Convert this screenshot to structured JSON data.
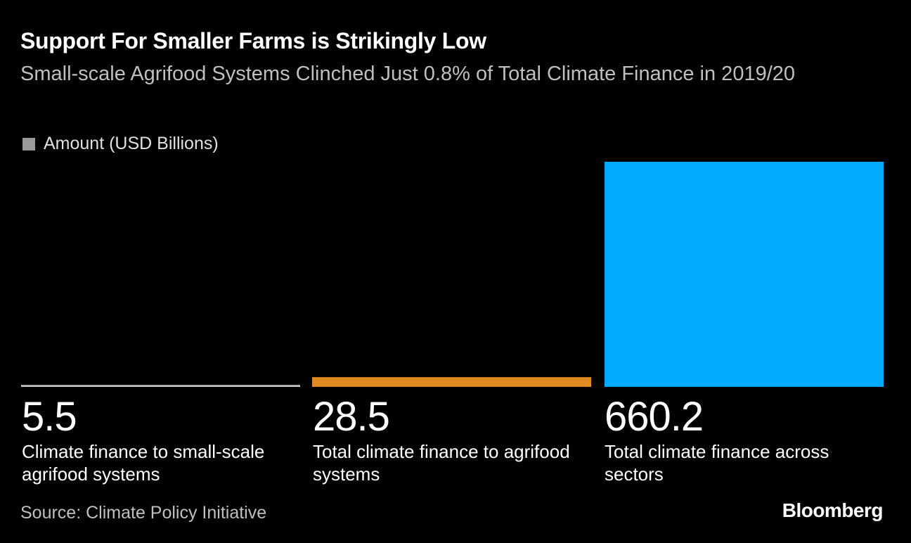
{
  "chart_data": {
    "type": "bar",
    "title": "Support For Smaller Farms is Strikingly Low",
    "subtitle": "Small-scale Agrifood Systems Clinched Just 0.8% of Total Climate Finance in 2019/20",
    "legend": {
      "label": "Amount (USD Billions)",
      "color": "#999999",
      "placement": "top-left"
    },
    "categories": [
      "Climate finance to small-scale agrifood systems",
      "Total climate finance to agrifood systems",
      "Total climate finance across sectors"
    ],
    "values": [
      5.5,
      28.5,
      660.2
    ],
    "value_labels": [
      "5.5",
      "28.5",
      "660.2"
    ],
    "colors": [
      "#cccccc",
      "#e08a22",
      "#00aaff"
    ],
    "ylim": [
      0,
      660.2
    ],
    "xlabel": "",
    "ylabel": "",
    "grid": false
  },
  "source": "Source: Climate Policy Initiative",
  "brand": "Bloomberg"
}
